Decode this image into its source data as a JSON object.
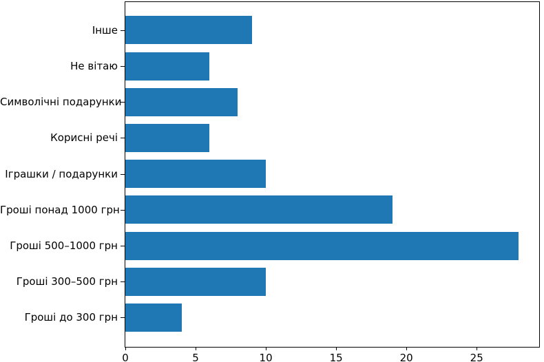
{
  "figure": {
    "background": "#ffffff",
    "axis_color": "#000000",
    "text_color": "#000000"
  },
  "chart_data": {
    "type": "bar",
    "orientation": "horizontal",
    "title": "",
    "xlabel": "",
    "ylabel": "",
    "categories": [
      "Інше",
      "Не вітаю",
      "Символічні подарунки",
      "Корисні речі",
      "Іграшки / подарунки",
      "Гроші понад 1000 грн",
      "Гроші 500–1000 грн",
      "Гроші 300–500 грн",
      "Гроші до 300 грн"
    ],
    "values": [
      9,
      6,
      8,
      6,
      10,
      19,
      28,
      10,
      4
    ],
    "x_ticks": [
      0,
      5,
      10,
      15,
      20,
      25
    ],
    "xlim": [
      0,
      29.4
    ],
    "bar_color": "#1f77b4",
    "grid": false,
    "legend": "none"
  }
}
